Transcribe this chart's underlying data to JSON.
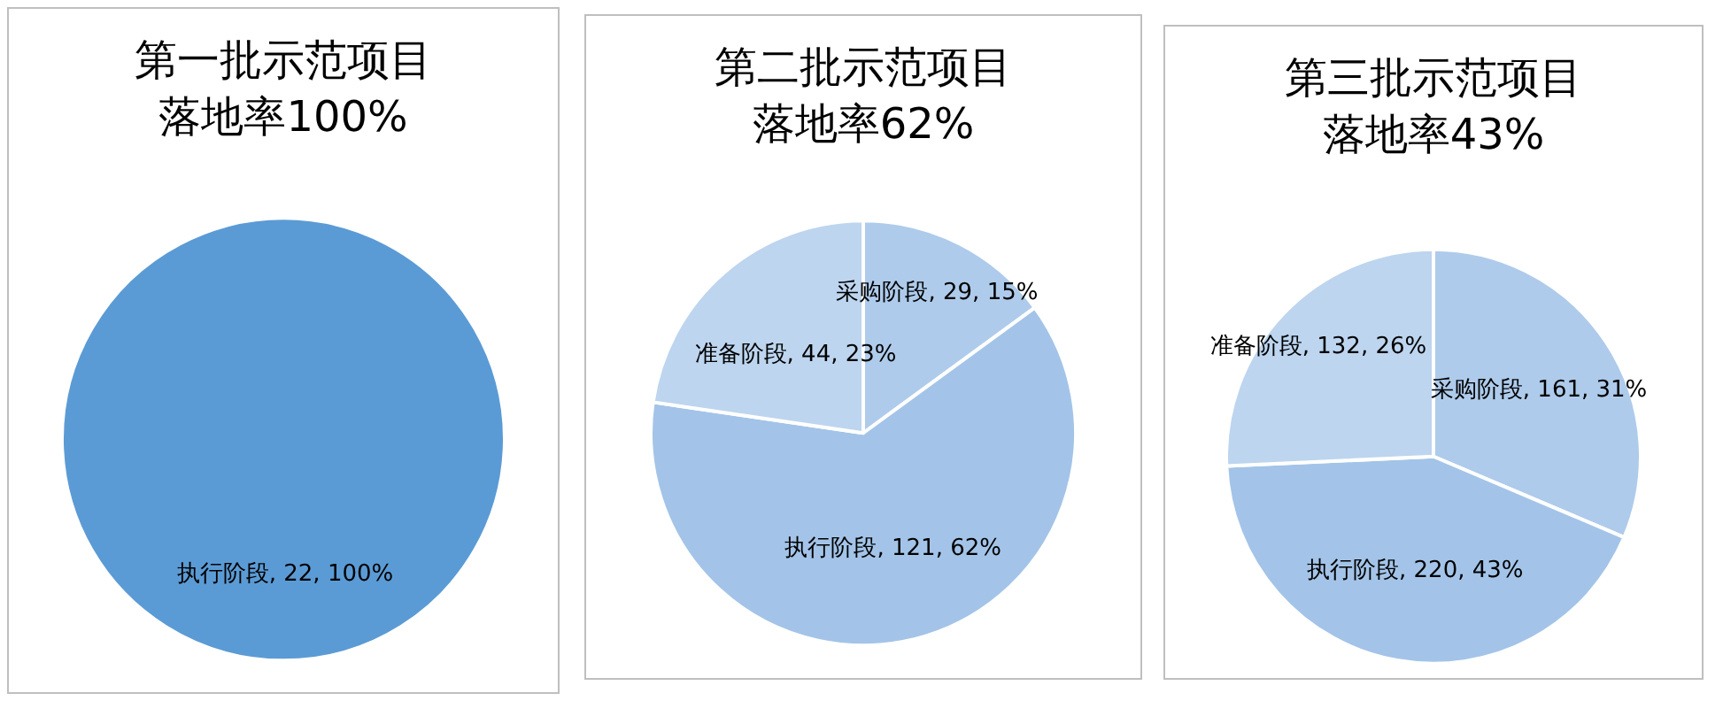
{
  "chart_data": [
    {
      "type": "pie",
      "title": "第一批示范项目落地率100%",
      "categories": [
        "执行阶段"
      ],
      "values": [
        22
      ],
      "colors": [
        "#5b9bd5"
      ],
      "value_labels": [
        ", 22, 100%"
      ]
    },
    {
      "type": "pie",
      "title": "第二批示范项目落地率62%",
      "categories": [
        "采购阶段",
        "执行阶段",
        "准备阶段"
      ],
      "values": [
        29,
        121,
        44
      ],
      "colors": [
        "#aecbeb",
        "#a3c4e8",
        "#bdd5ef"
      ],
      "value_labels": [
        ", 29, 15%",
        ", 121, 62%",
        ", 44, 23%"
      ]
    },
    {
      "type": "pie",
      "title": "第三批示范项目落地率43%",
      "categories": [
        "采购阶段",
        "执行阶段",
        "准备阶段"
      ],
      "values": [
        161,
        220,
        132
      ],
      "colors": [
        "#aecbeb",
        "#a3c4e8",
        "#bdd5ef"
      ],
      "value_labels": [
        ", 161, 31%",
        ", 220, 43%",
        ", 132, 26%"
      ]
    }
  ]
}
